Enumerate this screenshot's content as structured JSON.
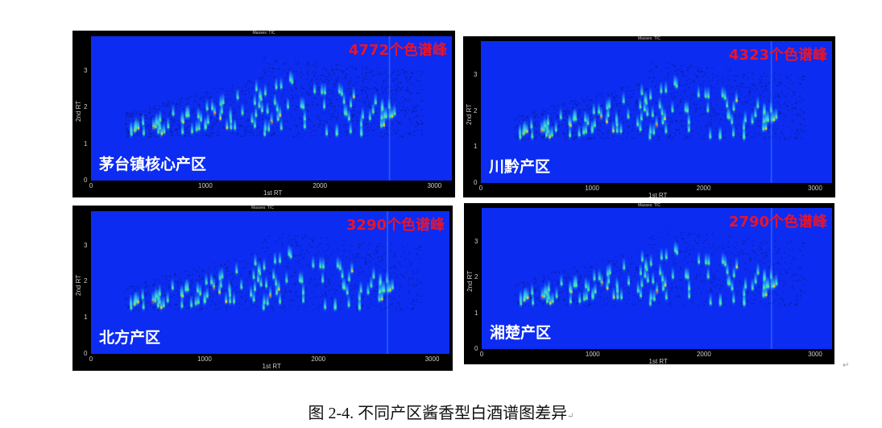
{
  "panels": [
    {
      "region": "茅台镇核心产区",
      "count": "4772个色谱峰",
      "masses": "Masses:  TIC",
      "xlabel": "1st RT",
      "ylabel": "2nd RT",
      "density": 1.0
    },
    {
      "region": "川黔产区",
      "count": "4323个色谱峰",
      "masses": "Masses:  TIC",
      "xlabel": "1st RT",
      "ylabel": "2nd RT",
      "density": 0.9
    },
    {
      "region": "北方产区",
      "count": "3290个色谱峰",
      "masses": "Masses:  TIC",
      "xlabel": "1st RT",
      "ylabel": "2nd RT",
      "density": 0.7
    },
    {
      "region": "湘楚产区",
      "count": "2790个色谱峰",
      "masses": "Masses:  TIC",
      "xlabel": "1st RT",
      "ylabel": "2nd RT",
      "density": 0.6
    }
  ],
  "axes": {
    "xticks": [
      "0",
      "1000",
      "2000",
      "3000"
    ],
    "yticks": [
      "0",
      "1",
      "2",
      "3"
    ],
    "xlim": [
      0,
      3150
    ],
    "ylim": [
      0,
      3.95
    ]
  },
  "colors": {
    "background": "#0c2cf2",
    "count_text": "#e8142a",
    "region_text": "#ffffff"
  },
  "caption": "图 2-4. 不同产区酱香型白酒谱图差异",
  "paragraph_mark": "↵"
}
